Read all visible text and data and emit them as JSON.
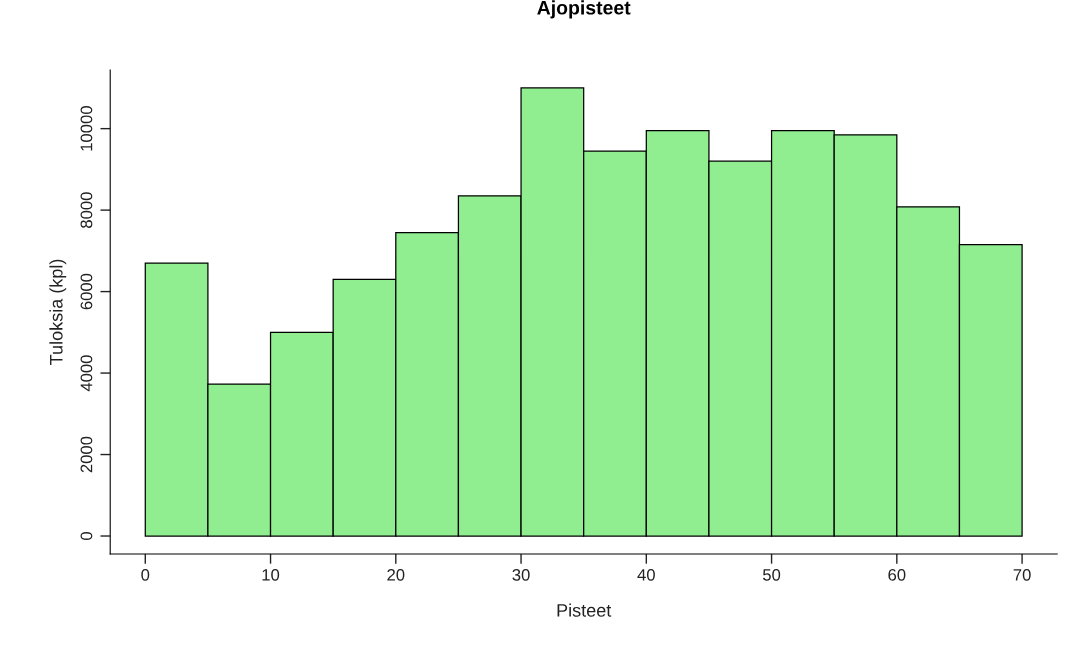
{
  "chart_data": {
    "type": "histogram",
    "title": "Ajopisteet",
    "xlabel": "Pisteet",
    "ylabel": "Tuloksia (kpl)",
    "bins": [
      0,
      5,
      10,
      15,
      20,
      25,
      30,
      35,
      40,
      45,
      50,
      55,
      60,
      65,
      70
    ],
    "values": [
      6700,
      3730,
      5000,
      6300,
      7450,
      8350,
      11000,
      9450,
      9950,
      9200,
      9950,
      9850,
      8080,
      7150
    ],
    "color": "#90ee90",
    "xlim": [
      -2.8,
      72.8
    ],
    "ylim": [
      -440,
      11440
    ],
    "xticks": [
      0,
      10,
      20,
      30,
      40,
      50,
      60,
      70
    ],
    "yticks": [
      0,
      2000,
      4000,
      6000,
      8000,
      10000
    ],
    "grid": false,
    "legend": false
  }
}
